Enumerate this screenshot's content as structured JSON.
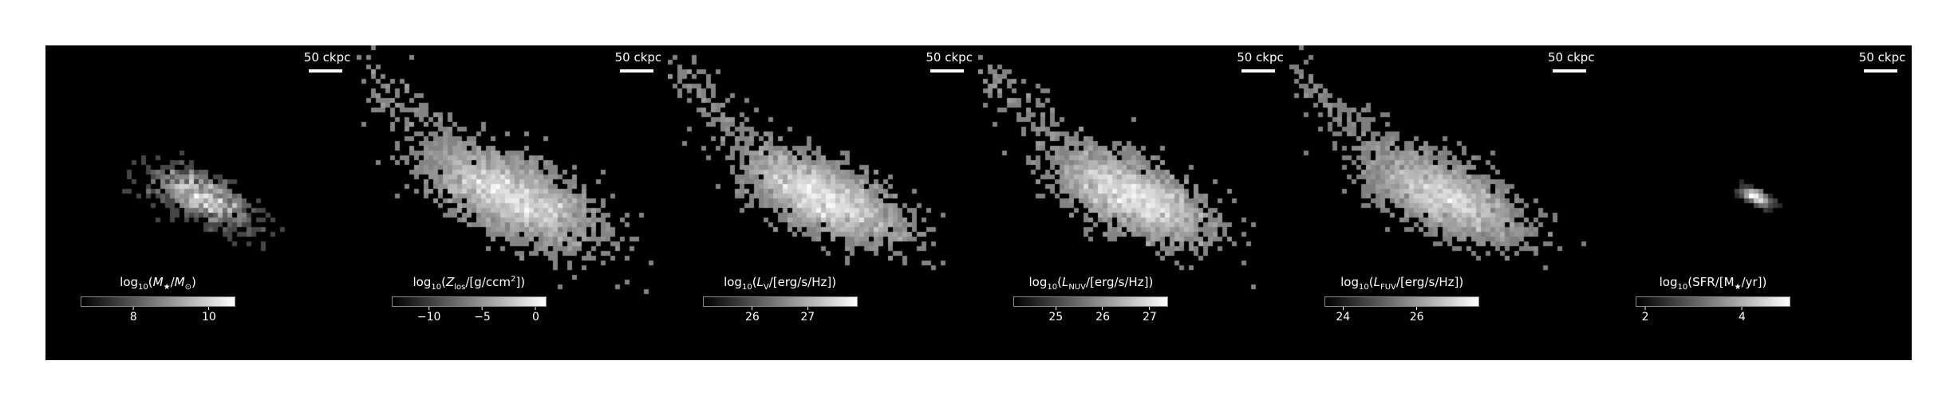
{
  "panels": [
    {
      "scale_label": "50 ckpc",
      "cbar": {
        "label_html": "log<sub>10</sub>(<i>M</i><sub>★</sub>/<i>M</i><sub>⊙</sub>)",
        "ticks": [
          {
            "value": 8,
            "label": "8"
          },
          {
            "value": 10,
            "label": "10"
          }
        ],
        "range": [
          6.6,
          10.7
        ]
      },
      "galaxy": {
        "spread": 0.6,
        "compact": true,
        "tail": false,
        "seed": 11
      }
    },
    {
      "scale_label": "50 ckpc",
      "cbar": {
        "label_html": "log<sub>10</sub>(<i>Z</i><sub>los</sub>/[g/ccm<sup>2</sup>])",
        "ticks": [
          {
            "value": -10,
            "label": "−10"
          },
          {
            "value": -5,
            "label": "−5"
          },
          {
            "value": 0,
            "label": "0"
          }
        ],
        "range": [
          -13.5,
          1
        ]
      },
      "galaxy": {
        "spread": 1.0,
        "compact": false,
        "tail": true,
        "seed": 22
      }
    },
    {
      "scale_label": "50 ckpc",
      "cbar": {
        "label_html": "log<sub>10</sub>(<i>L</i><sub>V</sub>/[erg/s/Hz])",
        "ticks": [
          {
            "value": 26,
            "label": "26"
          },
          {
            "value": 27,
            "label": "27"
          }
        ],
        "range": [
          25.1,
          27.9
        ]
      },
      "galaxy": {
        "spread": 0.9,
        "compact": false,
        "tail": true,
        "seed": 33
      }
    },
    {
      "scale_label": "50 ckpc",
      "cbar": {
        "label_html": "log<sub>10</sub>(<i>L</i><sub>NUV</sub>/[erg/s/Hz])",
        "ticks": [
          {
            "value": 25,
            "label": "25"
          },
          {
            "value": 26,
            "label": "26"
          },
          {
            "value": 27,
            "label": "27"
          }
        ],
        "range": [
          24.1,
          27.4
        ]
      },
      "galaxy": {
        "spread": 0.9,
        "compact": false,
        "tail": true,
        "seed": 44
      }
    },
    {
      "scale_label": "50 ckpc",
      "cbar": {
        "label_html": "log<sub>10</sub>(<i>L</i><sub>FUV</sub>/[erg/s/Hz])",
        "ticks": [
          {
            "value": 24,
            "label": "24"
          },
          {
            "value": 26,
            "label": "26"
          }
        ],
        "range": [
          23.5,
          27.7
        ]
      },
      "galaxy": {
        "spread": 0.9,
        "compact": false,
        "tail": true,
        "seed": 55
      }
    },
    {
      "scale_label": "50 ckpc",
      "cbar": {
        "label_html": "log<sub>10</sub>(SFR/[M<sub>★</sub>/yr])",
        "ticks": [
          {
            "value": 2,
            "label": "2"
          },
          {
            "value": 4,
            "label": "4"
          }
        ],
        "range": [
          1.8,
          5
        ]
      },
      "galaxy": {
        "spread": 0.18,
        "compact": true,
        "tail": false,
        "seed": 66
      }
    }
  ]
}
